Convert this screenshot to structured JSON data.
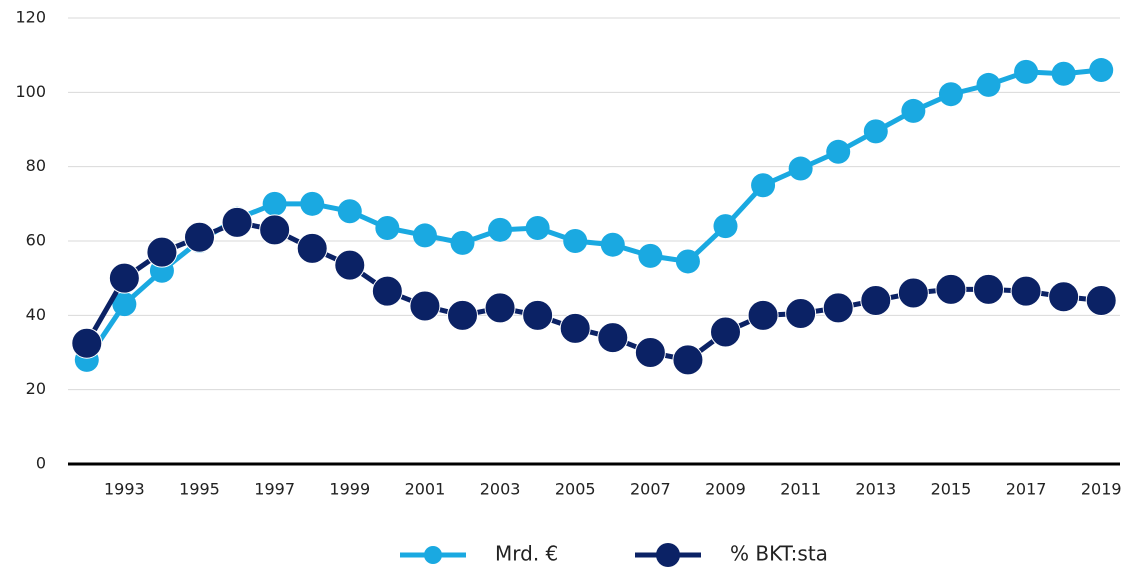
{
  "chart_data": {
    "type": "line",
    "x": [
      1992,
      1993,
      1994,
      1995,
      1996,
      1997,
      1998,
      1999,
      2000,
      2001,
      2002,
      2003,
      2004,
      2005,
      2006,
      2007,
      2008,
      2009,
      2010,
      2011,
      2012,
      2013,
      2014,
      2015,
      2016,
      2017,
      2018,
      2019
    ],
    "xlim": [
      1991.5,
      2019.5
    ],
    "xticks": [
      1993,
      1995,
      1997,
      1999,
      2001,
      2003,
      2005,
      2007,
      2009,
      2011,
      2013,
      2015,
      2017,
      2019
    ],
    "ylim": [
      0,
      120
    ],
    "yticks": [
      0,
      20,
      40,
      60,
      80,
      100,
      120
    ],
    "grid": true,
    "legend": "bottom",
    "series": [
      {
        "name": "Mrd. €",
        "color": "#1aa9e1",
        "values": [
          28,
          43,
          52,
          60,
          66,
          70,
          70,
          68,
          63.5,
          61.5,
          59.5,
          63,
          63.5,
          60,
          59,
          56,
          54.5,
          64,
          75,
          79.5,
          84,
          89.5,
          95,
          99.5,
          102,
          105.5,
          105,
          106
        ]
      },
      {
        "name": "% BKT:sta",
        "color": "#0b2265",
        "values": [
          32.5,
          50,
          57,
          61,
          65,
          63,
          58,
          53.5,
          46.5,
          42.5,
          40,
          42,
          40,
          36.5,
          34,
          30,
          28,
          35.5,
          40,
          40.5,
          42,
          44,
          46,
          47,
          47,
          46.5,
          45,
          44
        ]
      }
    ]
  }
}
